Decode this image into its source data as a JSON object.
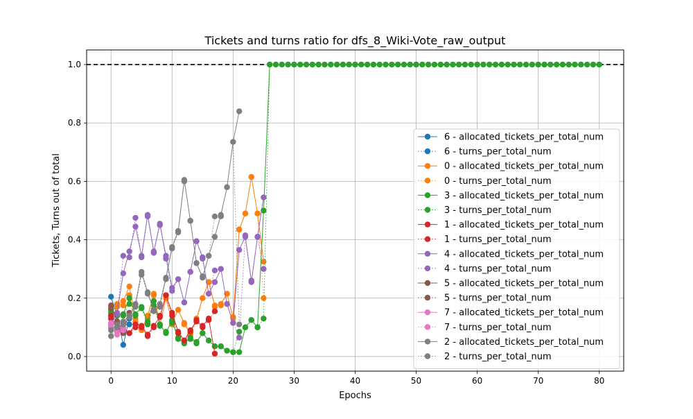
{
  "chart_data": {
    "type": "line",
    "title": "Tickets and turns ratio for dfs_8_Wiki-Vote_raw_output",
    "xlabel": "Epochs",
    "ylabel": "Tickets, Turns out of total",
    "xlim": [
      -4,
      84
    ],
    "ylim": [
      -0.05,
      1.05
    ],
    "xticks": [
      0,
      10,
      20,
      30,
      40,
      50,
      60,
      70,
      80
    ],
    "yticks": [
      0.0,
      0.2,
      0.4,
      0.6,
      0.8,
      1.0
    ],
    "grid": true,
    "legend_position": "lower-right",
    "reference_line": {
      "y": 1.0,
      "style": "dashed",
      "color": "#000000"
    },
    "series": [
      {
        "name": "6 - allocated_tickets_per_total_num",
        "color": "#1f77b4",
        "style": "solid",
        "x": [
          0,
          1,
          2,
          3
        ],
        "y": [
          0.205,
          0.14,
          0.04,
          0.13
        ]
      },
      {
        "name": "6 - turns_per_total_num",
        "color": "#1f77b4",
        "style": "dotted",
        "x": [
          0,
          1,
          2,
          3
        ],
        "y": [
          0.14,
          0.12,
          0.09,
          0.11
        ]
      },
      {
        "name": "0 - allocated_tickets_per_total_num",
        "color": "#ff7f0e",
        "style": "solid",
        "x": [
          0,
          1,
          2,
          3,
          4,
          5,
          6,
          7,
          8,
          9,
          10,
          11,
          12,
          13,
          14,
          15,
          16,
          17,
          18,
          19,
          20,
          21,
          22,
          23,
          24,
          25
        ],
        "y": [
          0.175,
          0.18,
          0.19,
          0.24,
          0.13,
          0.09,
          0.14,
          0.215,
          0.11,
          0.2,
          0.12,
          0.16,
          0.115,
          0.08,
          0.13,
          0.2,
          0.255,
          0.175,
          0.18,
          0.215,
          0.13,
          0.435,
          0.49,
          0.615,
          0.49,
          0.325
        ]
      },
      {
        "name": "0 - turns_per_total_num",
        "color": "#ff7f0e",
        "style": "dotted",
        "x": [
          0,
          1,
          2,
          3,
          4,
          5,
          6,
          7,
          8,
          9,
          10,
          11,
          12,
          13,
          14,
          15,
          16,
          17,
          18,
          19,
          20,
          21,
          22,
          23,
          24,
          25
        ],
        "y": [
          0.16,
          0.17,
          0.175,
          0.21,
          0.12,
          0.095,
          0.13,
          0.21,
          0.105,
          0.21,
          0.11,
          0.16,
          0.11,
          0.075,
          0.12,
          0.2,
          0.255,
          0.17,
          0.175,
          0.215,
          0.135,
          0.435,
          0.49,
          0.615,
          0.49,
          0.2
        ]
      },
      {
        "name": "3 - allocated_tickets_per_total_num",
        "color": "#2ca02c",
        "style": "solid",
        "x": [
          0,
          1,
          2,
          3,
          4,
          5,
          6,
          7,
          8,
          9,
          10,
          11,
          12,
          13,
          14,
          15,
          16,
          17,
          18,
          19,
          20,
          21,
          22,
          23,
          24,
          25,
          26,
          27,
          28,
          29,
          30,
          31,
          32,
          33,
          34,
          35,
          36,
          37,
          38,
          39,
          40,
          41,
          42,
          43,
          44,
          45,
          46,
          47,
          48,
          49,
          50,
          51,
          52,
          53,
          54,
          55,
          56,
          57,
          58,
          59,
          60,
          61,
          62,
          63,
          64,
          65,
          66,
          67,
          68,
          69,
          70,
          71,
          72,
          73,
          74,
          75,
          76,
          77,
          78,
          79,
          80
        ],
        "y": [
          0.16,
          0.145,
          0.145,
          0.2,
          0.145,
          0.17,
          0.12,
          0.19,
          0.11,
          0.08,
          0.125,
          0.065,
          0.045,
          0.065,
          0.05,
          0.08,
          0.055,
          0.035,
          0.035,
          0.02,
          0.015,
          0.015,
          0.1,
          0.125,
          0.1,
          0.5,
          1.0,
          1.0,
          1.0,
          1.0,
          1.0,
          1.0,
          1.0,
          1.0,
          1.0,
          1.0,
          1.0,
          1.0,
          1.0,
          1.0,
          1.0,
          1.0,
          1.0,
          1.0,
          1.0,
          1.0,
          1.0,
          1.0,
          1.0,
          1.0,
          1.0,
          1.0,
          1.0,
          1.0,
          1.0,
          1.0,
          1.0,
          1.0,
          1.0,
          1.0,
          1.0,
          1.0,
          1.0,
          1.0,
          1.0,
          1.0,
          1.0,
          1.0,
          1.0,
          1.0,
          1.0,
          1.0,
          1.0,
          1.0,
          1.0,
          1.0,
          1.0,
          1.0,
          1.0,
          1.0,
          1.0
        ]
      },
      {
        "name": "3 - turns_per_total_num",
        "color": "#2ca02c",
        "style": "dotted",
        "x": [
          0,
          1,
          2,
          3,
          4,
          5,
          6,
          7,
          8,
          9,
          10,
          11,
          12,
          13,
          14,
          15,
          16,
          17,
          18,
          19,
          20,
          21,
          22,
          23,
          24,
          25,
          26,
          27,
          28,
          29,
          30,
          31,
          32,
          33,
          34,
          35,
          36,
          37,
          38,
          39,
          40,
          41,
          42,
          43,
          44,
          45,
          46,
          47,
          48,
          49,
          50,
          51,
          52,
          53,
          54,
          55,
          56,
          57,
          58,
          59,
          60,
          61,
          62,
          63,
          64,
          65,
          66,
          67,
          68,
          69,
          70,
          71,
          72,
          73,
          74,
          75,
          76,
          77,
          78,
          79,
          80
        ],
        "y": [
          0.15,
          0.14,
          0.14,
          0.18,
          0.14,
          0.165,
          0.11,
          0.175,
          0.105,
          0.085,
          0.115,
          0.06,
          0.045,
          0.06,
          0.045,
          0.08,
          0.055,
          0.035,
          0.035,
          0.02,
          0.015,
          0.085,
          0.1,
          0.125,
          0.1,
          0.13,
          1.0,
          1.0,
          1.0,
          1.0,
          1.0,
          1.0,
          1.0,
          1.0,
          1.0,
          1.0,
          1.0,
          1.0,
          1.0,
          1.0,
          1.0,
          1.0,
          1.0,
          1.0,
          1.0,
          1.0,
          1.0,
          1.0,
          1.0,
          1.0,
          1.0,
          1.0,
          1.0,
          1.0,
          1.0,
          1.0,
          1.0,
          1.0,
          1.0,
          1.0,
          1.0,
          1.0,
          1.0,
          1.0,
          1.0,
          1.0,
          1.0,
          1.0,
          1.0,
          1.0,
          1.0,
          1.0,
          1.0,
          1.0,
          1.0,
          1.0,
          1.0,
          1.0,
          1.0,
          1.0,
          1.0
        ]
      },
      {
        "name": "1 - allocated_tickets_per_total_num",
        "color": "#d62728",
        "style": "solid",
        "x": [
          0,
          1,
          2,
          3,
          4,
          5,
          6,
          7,
          8,
          9,
          10,
          11,
          12,
          13,
          14,
          15,
          16,
          17
        ],
        "y": [
          0.14,
          0.09,
          0.1,
          0.08,
          0.11,
          0.105,
          0.075,
          0.105,
          0.135,
          0.21,
          0.15,
          0.085,
          0.055,
          0.09,
          0.12,
          0.105,
          0.13,
          0.01
        ]
      },
      {
        "name": "1 - turns_per_total_num",
        "color": "#d62728",
        "style": "dotted",
        "x": [
          0,
          1,
          2,
          3,
          4,
          5,
          6,
          7,
          8,
          9,
          10,
          11,
          12,
          13,
          14,
          15,
          16,
          17
        ],
        "y": [
          0.13,
          0.085,
          0.09,
          0.08,
          0.1,
          0.1,
          0.07,
          0.1,
          0.14,
          0.21,
          0.14,
          0.08,
          0.055,
          0.085,
          0.125,
          0.1,
          0.125,
          0.155
        ]
      },
      {
        "name": "4 - allocated_tickets_per_total_num",
        "color": "#9467bd",
        "style": "solid",
        "x": [
          0,
          1,
          2,
          3,
          4,
          5,
          6,
          7,
          8,
          9,
          10,
          11,
          12,
          13,
          14,
          15,
          16,
          17,
          18,
          19,
          20,
          21,
          22,
          23,
          24,
          25
        ],
        "y": [
          0.11,
          0.15,
          0.285,
          0.36,
          0.445,
          0.345,
          0.485,
          0.36,
          0.455,
          0.345,
          0.235,
          0.265,
          0.185,
          0.29,
          0.395,
          0.34,
          0.215,
          0.255,
          0.3,
          0.18,
          0.115,
          0.365,
          0.41,
          0.255,
          0.41,
          0.545
        ]
      },
      {
        "name": "4 - turns_per_total_num",
        "color": "#9467bd",
        "style": "dotted",
        "x": [
          0,
          1,
          2,
          3,
          4,
          5,
          6,
          7,
          8,
          9,
          10,
          11,
          12,
          13,
          14,
          15,
          16,
          17,
          18,
          19,
          20,
          21,
          22,
          23,
          24,
          25
        ],
        "y": [
          0.1,
          0.145,
          0.345,
          0.34,
          0.475,
          0.34,
          0.48,
          0.355,
          0.45,
          0.335,
          0.225,
          0.265,
          0.185,
          0.29,
          0.395,
          0.335,
          0.215,
          0.295,
          0.3,
          0.18,
          0.115,
          0.065,
          0.415,
          0.26,
          0.41,
          0.3
        ]
      },
      {
        "name": "5 - allocated_tickets_per_total_num",
        "color": "#8c564b",
        "style": "solid",
        "x": [
          0,
          1,
          2,
          3
        ],
        "y": [
          0.175,
          0.12,
          0.085,
          0.15
        ]
      },
      {
        "name": "5 - turns_per_total_num",
        "color": "#8c564b",
        "style": "dotted",
        "x": [
          0,
          1,
          2,
          3
        ],
        "y": [
          0.165,
          0.11,
          0.08,
          0.14
        ]
      },
      {
        "name": "7 - allocated_tickets_per_total_num",
        "color": "#e377c2",
        "style": "solid",
        "x": [
          0,
          1,
          2
        ],
        "y": [
          0.105,
          0.085,
          0.1
        ]
      },
      {
        "name": "7 - turns_per_total_num",
        "color": "#e377c2",
        "style": "dotted",
        "x": [
          0,
          1,
          2
        ],
        "y": [
          0.115,
          0.075,
          0.09
        ]
      },
      {
        "name": "2 - allocated_tickets_per_total_num",
        "color": "#7f7f7f",
        "style": "solid",
        "x": [
          0,
          1,
          2,
          3,
          4,
          5,
          6,
          7,
          8,
          9,
          10,
          11,
          12,
          13,
          14,
          15,
          16,
          17,
          18,
          19,
          20,
          21
        ],
        "y": [
          0.09,
          0.11,
          0.12,
          0.14,
          0.18,
          0.29,
          0.22,
          0.16,
          0.18,
          0.27,
          0.375,
          0.43,
          0.605,
          0.465,
          0.32,
          0.27,
          0.345,
          0.41,
          0.485,
          0.58,
          0.735,
          0.84
        ]
      },
      {
        "name": "2 - turns_per_total_num",
        "color": "#7f7f7f",
        "style": "dotted",
        "x": [
          0,
          1,
          2,
          3,
          4,
          5,
          6,
          7,
          8,
          9,
          10,
          11,
          12,
          13,
          14,
          15,
          16,
          17,
          18,
          19,
          20,
          21
        ],
        "y": [
          0.07,
          0.1,
          0.11,
          0.135,
          0.17,
          0.28,
          0.215,
          0.155,
          0.17,
          0.265,
          0.37,
          0.425,
          0.6,
          0.465,
          0.32,
          0.275,
          0.345,
          0.48,
          0.48,
          0.58,
          0.735,
          0.11
        ]
      }
    ]
  }
}
